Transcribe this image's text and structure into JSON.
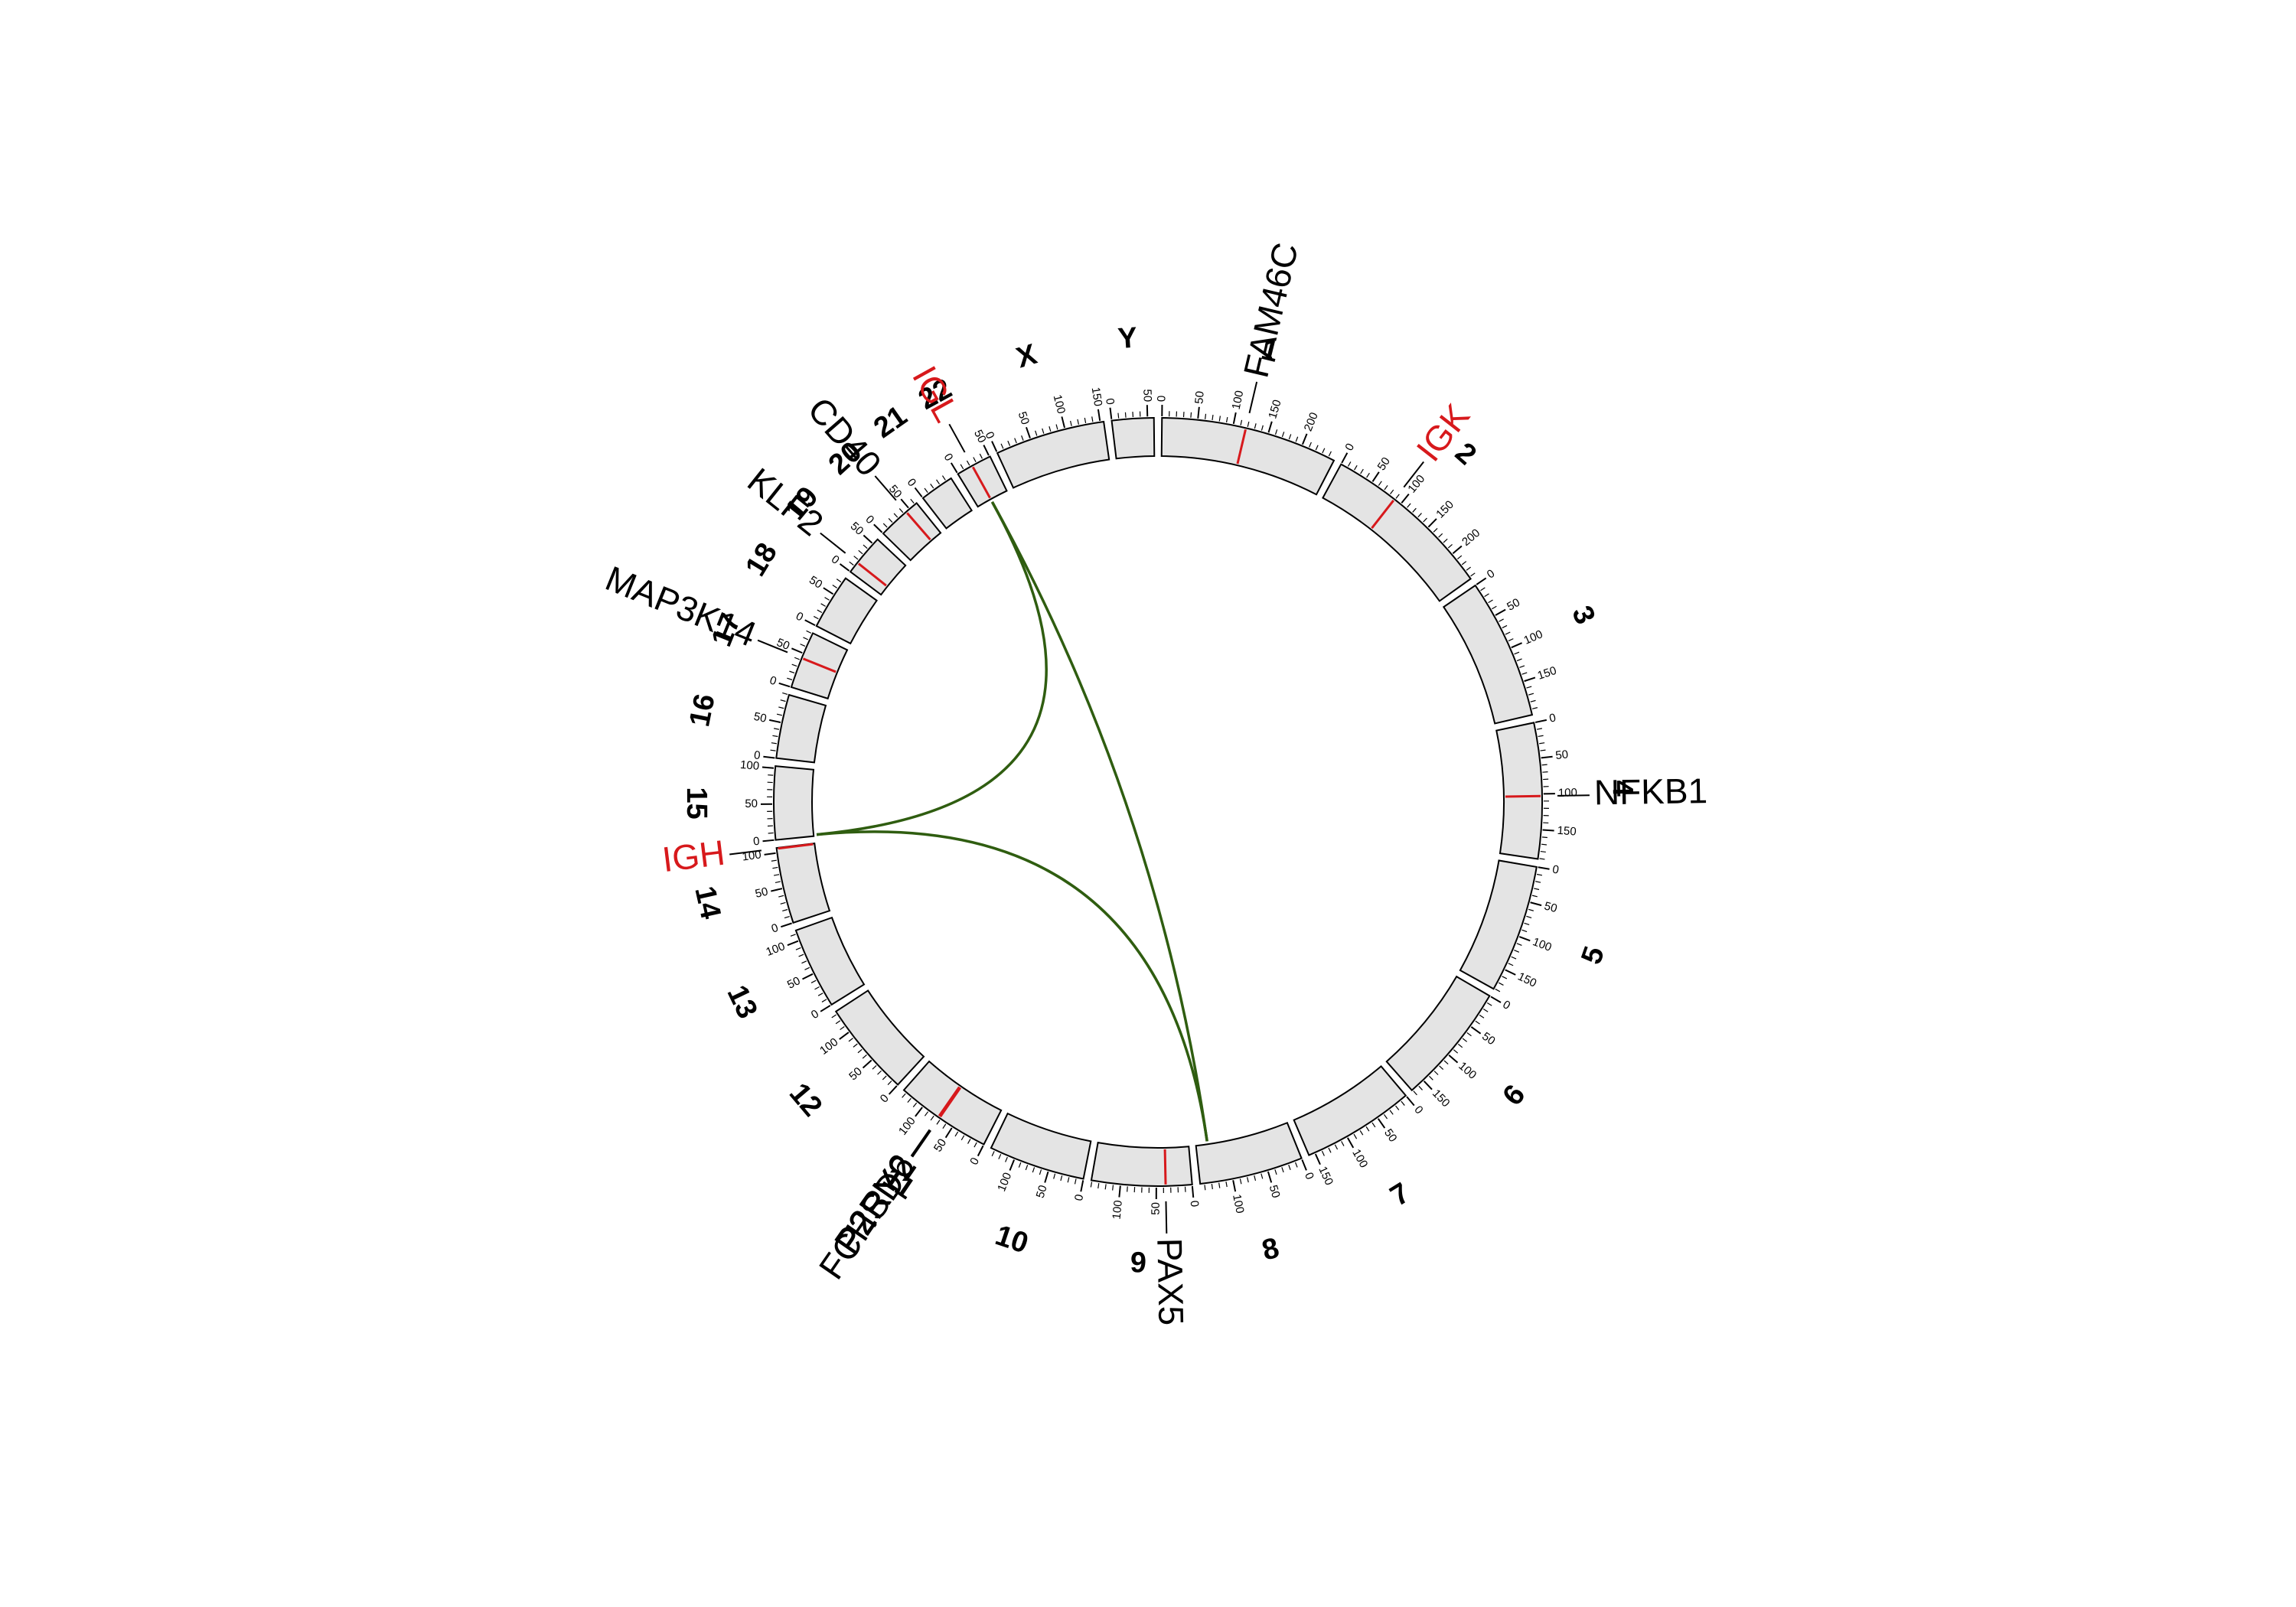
{
  "chart_data": {
    "type": "circos",
    "ideogram_color": "#e4e4e4",
    "minor_tick_every": 10,
    "chromosomes": [
      {
        "name": "1",
        "length": 249,
        "ticks": [
          0,
          50,
          100,
          150,
          200
        ]
      },
      {
        "name": "2",
        "length": 243,
        "ticks": [
          0,
          50,
          100,
          150,
          200
        ]
      },
      {
        "name": "3",
        "length": 198,
        "ticks": [
          0,
          50,
          100,
          150
        ]
      },
      {
        "name": "4",
        "length": 191,
        "ticks": [
          0,
          50,
          100,
          150
        ]
      },
      {
        "name": "5",
        "length": 181,
        "ticks": [
          0,
          50,
          100,
          150
        ]
      },
      {
        "name": "6",
        "length": 171,
        "ticks": [
          0,
          50,
          100,
          150
        ]
      },
      {
        "name": "7",
        "length": 159,
        "ticks": [
          0,
          50,
          100,
          150
        ]
      },
      {
        "name": "8",
        "length": 146,
        "ticks": [
          0,
          50,
          100
        ]
      },
      {
        "name": "9",
        "length": 141,
        "ticks": [
          0,
          50,
          100
        ]
      },
      {
        "name": "10",
        "length": 136,
        "ticks": [
          0,
          50,
          100
        ]
      },
      {
        "name": "11",
        "length": 135,
        "ticks": [
          0,
          50,
          100
        ]
      },
      {
        "name": "12",
        "length": 134,
        "ticks": [
          0,
          50,
          100
        ]
      },
      {
        "name": "13",
        "length": 115,
        "ticks": [
          0,
          50,
          100
        ]
      },
      {
        "name": "14",
        "length": 107,
        "ticks": [
          0,
          50,
          100
        ]
      },
      {
        "name": "15",
        "length": 103,
        "ticks": [
          0,
          50,
          100
        ]
      },
      {
        "name": "16",
        "length": 90,
        "ticks": [
          0,
          50
        ]
      },
      {
        "name": "17",
        "length": 81,
        "ticks": [
          0,
          50
        ]
      },
      {
        "name": "18",
        "length": 78,
        "ticks": [
          0,
          50
        ]
      },
      {
        "name": "19",
        "length": 59,
        "ticks": [
          0,
          50
        ]
      },
      {
        "name": "20",
        "length": 63,
        "ticks": [
          0,
          50
        ]
      },
      {
        "name": "21",
        "length": 48,
        "ticks": [
          0
        ]
      },
      {
        "name": "22",
        "length": 51,
        "ticks": [
          0,
          50
        ]
      },
      {
        "name": "X",
        "length": 155,
        "ticks": [
          0,
          50,
          100,
          150
        ]
      },
      {
        "name": "Y",
        "length": 59,
        "ticks": [
          0,
          50
        ]
      }
    ],
    "genes": [
      {
        "name": "FAM46C",
        "chromosome": "1",
        "position": 118,
        "color": "#000000"
      },
      {
        "name": "IGK",
        "chromosome": "2",
        "position": 89,
        "color": "#d7191c"
      },
      {
        "name": "NFKB1",
        "chromosome": "4",
        "position": 103,
        "color": "#000000"
      },
      {
        "name": "PAX5",
        "chromosome": "9",
        "position": 37,
        "color": "#000000"
      },
      {
        "name": "FCHSD2",
        "chromosome": "11",
        "position": 72,
        "color": "#000000"
      },
      {
        "name": "P2RY2",
        "chromosome": "11",
        "position": 73,
        "color": "#000000"
      },
      {
        "name": "P2RY6",
        "chromosome": "11",
        "position": 74,
        "color": "#000000"
      },
      {
        "name": "IGH",
        "chromosome": "14",
        "position": 106,
        "color": "#d7191c"
      },
      {
        "name": "MAP3K14",
        "chromosome": "17",
        "position": 43,
        "color": "#000000"
      },
      {
        "name": "KLF2",
        "chromosome": "19",
        "position": 16,
        "color": "#000000"
      },
      {
        "name": "CD40",
        "chromosome": "20",
        "position": 44,
        "color": "#000000"
      },
      {
        "name": "IGL",
        "chromosome": "22",
        "position": 23,
        "color": "#d7191c"
      }
    ],
    "links": [
      {
        "from": {
          "chromosome": "22",
          "position": 23
        },
        "to": {
          "chromosome": "8",
          "position": 128
        },
        "color": "#2f5d10"
      },
      {
        "from": {
          "chromosome": "22",
          "position": 23
        },
        "to": {
          "chromosome": "15",
          "position": 2
        },
        "color": "#2f5d10"
      },
      {
        "from": {
          "chromosome": "15",
          "position": 2
        },
        "to": {
          "chromosome": "8",
          "position": 128
        },
        "color": "#2f5d10"
      }
    ]
  }
}
